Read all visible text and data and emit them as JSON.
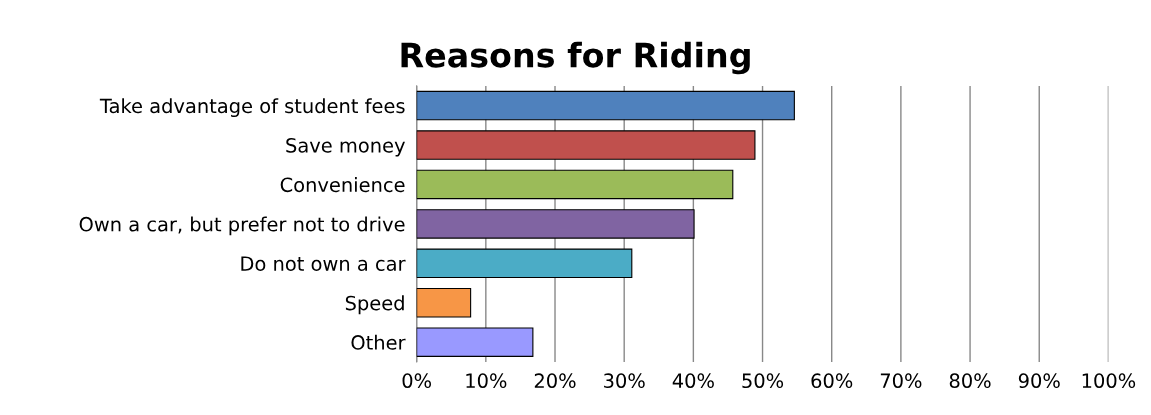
{
  "chart_data": {
    "type": "bar",
    "orientation": "horizontal",
    "title": "Reasons for Riding",
    "categories": [
      "Take advantage of student fees",
      "Save money",
      "Convenience",
      "Own a car, but prefer not to drive",
      "Do not own a car",
      "Speed",
      "Other"
    ],
    "values": [
      54.6,
      48.9,
      45.7,
      40.1,
      31.1,
      7.8,
      16.8
    ],
    "colors": [
      "#4f81bd",
      "#c0504d",
      "#9bbb59",
      "#8064a2",
      "#4bacc6",
      "#f79646",
      "#9999ff"
    ],
    "xlim": [
      0,
      100
    ],
    "xticks": [
      {
        "value": 0,
        "label": "0%"
      },
      {
        "value": 10,
        "label": "10%"
      },
      {
        "value": 20,
        "label": "20%"
      },
      {
        "value": 30,
        "label": "30%"
      },
      {
        "value": 40,
        "label": "40%"
      },
      {
        "value": 50,
        "label": "50%"
      },
      {
        "value": 60,
        "label": "60%"
      },
      {
        "value": 70,
        "label": "70%"
      },
      {
        "value": 80,
        "label": "80%"
      },
      {
        "value": 90,
        "label": "90%"
      },
      {
        "value": 100,
        "label": "100%"
      }
    ],
    "grid": "x",
    "legend": false
  }
}
